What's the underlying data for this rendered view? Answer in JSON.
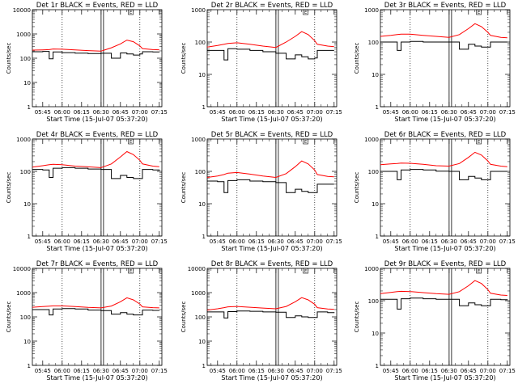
{
  "colors": {
    "background": "#ffffff",
    "axes": "#000000",
    "events": "#000000",
    "lld": "#ff0000"
  },
  "common": {
    "x_ticks": [
      "05:45",
      "06:00",
      "06:15",
      "06:30",
      "06:45",
      "07:00",
      "07:15"
    ],
    "y_ticks": [
      "1",
      "10",
      "100",
      "1000"
    ],
    "ylabel": "Counts/sec",
    "xlabel": "Start Time (15-Jul-07 05:37:20)",
    "flag_text": "E"
  },
  "chart_data": [
    {
      "type": "line",
      "title": "Det 1r BLACK = Events, RED = LLD",
      "y_top_label": "10000",
      "ylim": [
        1,
        10000
      ],
      "y_scale": "log",
      "grid": "dotted verticals at 06:00 and 07:00",
      "x": [
        "05:37",
        "05:45",
        "05:50",
        "05:53",
        "06:00",
        "06:10",
        "06:20",
        "06:30",
        "06:38",
        "06:45",
        "06:50",
        "06:55",
        "07:00",
        "07:02",
        "07:10",
        "07:15"
      ],
      "series": [
        {
          "name": "Events",
          "color": "#000000",
          "values": [
            185,
            190,
            95,
            180,
            170,
            162,
            155,
            160,
            100,
            165,
            150,
            135,
            150,
            185,
            180,
            178
          ]
        },
        {
          "name": "LLD",
          "color": "#ff0000",
          "values": [
            215,
            220,
            225,
            240,
            235,
            218,
            205,
            195,
            270,
            390,
            560,
            480,
            320,
            250,
            225,
            222
          ]
        }
      ]
    },
    {
      "type": "line",
      "title": "Det 2r BLACK = Events, RED = LLD",
      "y_top_label": "1000",
      "ylim": [
        1,
        1000
      ],
      "y_scale": "log",
      "grid": "dotted verticals at 06:00 and 07:00",
      "x": [
        "05:37",
        "05:45",
        "05:50",
        "05:53",
        "06:00",
        "06:10",
        "06:20",
        "06:30",
        "06:38",
        "06:45",
        "06:50",
        "06:55",
        "07:00",
        "07:02",
        "07:10",
        "07:15"
      ],
      "series": [
        {
          "name": "Events",
          "color": "#000000",
          "values": [
            55,
            55,
            28,
            62,
            60,
            55,
            50,
            45,
            30,
            40,
            35,
            30,
            32,
            55,
            55,
            55
          ]
        },
        {
          "name": "LLD",
          "color": "#ff0000",
          "values": [
            70,
            78,
            85,
            90,
            95,
            85,
            75,
            68,
            100,
            150,
            210,
            170,
            110,
            85,
            75,
            72
          ]
        }
      ]
    },
    {
      "type": "line",
      "title": "Det 3r BLACK = Events, RED = LLD",
      "y_top_label": "1000",
      "ylim": [
        1,
        1000
      ],
      "y_scale": "log",
      "grid": "dotted verticals at 06:00 and 07:00",
      "x": [
        "05:37",
        "05:45",
        "05:50",
        "05:53",
        "06:00",
        "06:10",
        "06:20",
        "06:30",
        "06:38",
        "06:45",
        "06:50",
        "06:55",
        "07:00",
        "07:02",
        "07:10",
        "07:15"
      ],
      "series": [
        {
          "name": "Events",
          "color": "#000000",
          "values": [
            100,
            100,
            55,
            100,
            105,
            100,
            100,
            100,
            60,
            85,
            75,
            70,
            70,
            100,
            100,
            100
          ]
        },
        {
          "name": "LLD",
          "color": "#ff0000",
          "values": [
            150,
            160,
            170,
            175,
            175,
            160,
            150,
            140,
            170,
            260,
            370,
            300,
            200,
            160,
            140,
            135
          ]
        }
      ]
    },
    {
      "type": "line",
      "title": "Det 4r BLACK = Events, RED = LLD",
      "y_top_label": "1000",
      "ylim": [
        1,
        1000
      ],
      "y_scale": "log",
      "grid": "dotted verticals at 06:00 and 07:00",
      "x": [
        "05:37",
        "05:45",
        "05:50",
        "05:53",
        "06:00",
        "06:10",
        "06:20",
        "06:30",
        "06:38",
        "06:45",
        "06:50",
        "06:55",
        "07:00",
        "07:02",
        "07:10",
        "07:15"
      ],
      "series": [
        {
          "name": "Events",
          "color": "#000000",
          "values": [
            115,
            110,
            65,
            125,
            130,
            125,
            118,
            115,
            60,
            75,
            65,
            60,
            60,
            115,
            110,
            105
          ]
        },
        {
          "name": "LLD",
          "color": "#ff0000",
          "values": [
            135,
            150,
            160,
            165,
            160,
            145,
            138,
            130,
            170,
            280,
            410,
            330,
            220,
            170,
            145,
            140
          ]
        }
      ]
    },
    {
      "type": "line",
      "title": "Det 5r BLACK = Events, RED = LLD",
      "y_top_label": "1000",
      "ylim": [
        1,
        1000
      ],
      "y_scale": "log",
      "grid": "dotted verticals at 06:00 and 07:00",
      "x": [
        "05:37",
        "05:45",
        "05:50",
        "05:53",
        "06:00",
        "06:10",
        "06:20",
        "06:30",
        "06:38",
        "06:45",
        "06:50",
        "06:55",
        "07:00",
        "07:02",
        "07:10",
        "07:15"
      ],
      "series": [
        {
          "name": "Events",
          "color": "#000000",
          "values": [
            50,
            48,
            22,
            52,
            55,
            50,
            48,
            45,
            22,
            28,
            24,
            22,
            22,
            40,
            40,
            40
          ]
        },
        {
          "name": "LLD",
          "color": "#ff0000",
          "values": [
            65,
            72,
            80,
            88,
            92,
            82,
            72,
            65,
            85,
            140,
            210,
            170,
            110,
            80,
            70,
            68
          ]
        }
      ]
    },
    {
      "type": "line",
      "title": "Det 6r BLACK = Events, RED = LLD",
      "y_top_label": "1000",
      "ylim": [
        1,
        1000
      ],
      "y_scale": "log",
      "grid": "dotted verticals at 06:00 and 07:00",
      "x": [
        "05:37",
        "05:45",
        "05:50",
        "05:53",
        "06:00",
        "06:10",
        "06:20",
        "06:30",
        "06:38",
        "06:45",
        "06:50",
        "06:55",
        "07:00",
        "07:02",
        "07:10",
        "07:15"
      ],
      "series": [
        {
          "name": "Events",
          "color": "#000000",
          "values": [
            100,
            100,
            55,
            110,
            115,
            110,
            102,
            100,
            55,
            70,
            62,
            55,
            55,
            100,
            100,
            100
          ]
        },
        {
          "name": "LLD",
          "color": "#ff0000",
          "values": [
            160,
            170,
            175,
            180,
            178,
            165,
            150,
            145,
            175,
            270,
            390,
            320,
            210,
            165,
            145,
            140
          ]
        }
      ]
    },
    {
      "type": "line",
      "title": "Det 7r BLACK = Events, RED = LLD",
      "y_top_label": "10000",
      "ylim": [
        1,
        10000
      ],
      "y_scale": "log",
      "grid": "dotted verticals at 06:00 and 07:00",
      "x": [
        "05:37",
        "05:45",
        "05:50",
        "05:53",
        "06:00",
        "06:10",
        "06:20",
        "06:30",
        "06:38",
        "06:45",
        "06:50",
        "06:55",
        "07:00",
        "07:02",
        "07:10",
        "07:15"
      ],
      "series": [
        {
          "name": "Events",
          "color": "#000000",
          "values": [
            200,
            200,
            120,
            210,
            220,
            210,
            190,
            180,
            130,
            150,
            130,
            120,
            120,
            190,
            185,
            180
          ]
        },
        {
          "name": "LLD",
          "color": "#ff0000",
          "values": [
            250,
            265,
            275,
            285,
            285,
            265,
            245,
            235,
            280,
            420,
            610,
            500,
            340,
            260,
            240,
            235
          ]
        }
      ]
    },
    {
      "type": "line",
      "title": "Det 8r BLACK = Events, RED = LLD",
      "y_top_label": "10000",
      "ylim": [
        1,
        10000
      ],
      "y_scale": "log",
      "grid": "dotted verticals at 06:00 and 07:00",
      "x": [
        "05:37",
        "05:45",
        "05:50",
        "05:53",
        "06:00",
        "06:10",
        "06:20",
        "06:30",
        "06:38",
        "06:45",
        "06:50",
        "06:55",
        "07:00",
        "07:02",
        "07:10",
        "07:15"
      ],
      "series": [
        {
          "name": "Events",
          "color": "#000000",
          "values": [
            160,
            160,
            90,
            165,
            175,
            170,
            160,
            155,
            95,
            110,
            100,
            95,
            95,
            160,
            150,
            145
          ]
        },
        {
          "name": "LLD",
          "color": "#ff0000",
          "values": [
            190,
            215,
            240,
            260,
            270,
            250,
            230,
            215,
            270,
            420,
            620,
            500,
            330,
            240,
            210,
            205
          ]
        }
      ]
    },
    {
      "type": "line",
      "title": "Det 9r BLACK = Events, RED = LLD",
      "y_top_label": "1000",
      "ylim": [
        1,
        1000
      ],
      "y_scale": "log",
      "grid": "dotted verticals at 06:00 and 07:00",
      "x": [
        "05:37",
        "05:45",
        "05:50",
        "05:53",
        "06:00",
        "06:10",
        "06:20",
        "06:30",
        "06:38",
        "06:45",
        "06:50",
        "06:55",
        "07:00",
        "07:02",
        "07:10",
        "07:15"
      ],
      "series": [
        {
          "name": "Events",
          "color": "#000000",
          "values": [
            110,
            110,
            55,
            115,
            120,
            115,
            110,
            110,
            70,
            85,
            75,
            70,
            70,
            110,
            108,
            105
          ]
        },
        {
          "name": "LLD",
          "color": "#ff0000",
          "values": [
            165,
            180,
            190,
            195,
            192,
            178,
            165,
            158,
            190,
            290,
            420,
            340,
            220,
            170,
            150,
            145
          ]
        }
      ]
    }
  ]
}
